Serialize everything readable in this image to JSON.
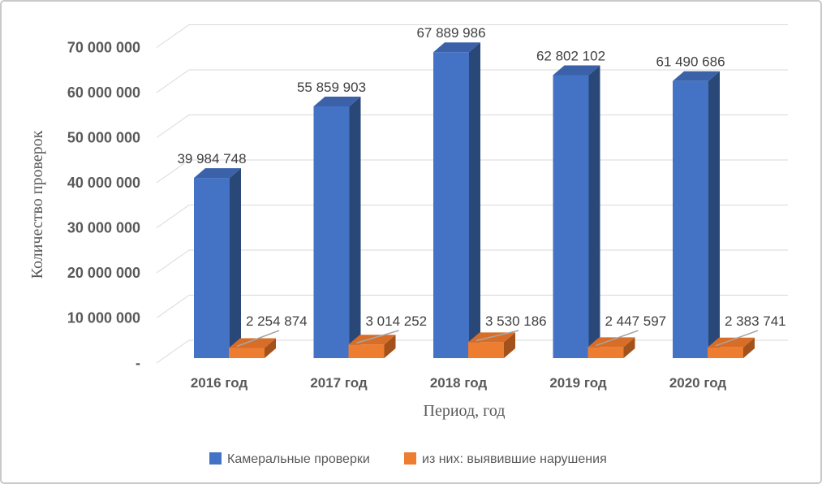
{
  "chart_data": {
    "type": "bar",
    "subtype": "3d-clustered-column",
    "title": "",
    "xlabel": "Период, год",
    "ylabel": "Количество проверок",
    "categories": [
      "2016 год",
      "2017 год",
      "2018 год",
      "2019 год",
      "2020 год"
    ],
    "series": [
      {
        "name": "Камеральные проверки",
        "color": "#4472C4",
        "color_top": "#3B62A9",
        "color_side": "#2A4877",
        "values": [
          39984748,
          55859903,
          67889986,
          62802102,
          61490686
        ],
        "labels": [
          "39 984 748",
          "55 859 903",
          "67 889 986",
          "62 802 102",
          "61 490 686"
        ]
      },
      {
        "name": "из них: выявившие нарушения",
        "color": "#ED7D31",
        "color_top": "#D86D28",
        "color_side": "#A2521A",
        "values": [
          2254874,
          3014252,
          3530186,
          2447597,
          2383741
        ],
        "labels": [
          "2 254 874",
          "3 014 252",
          "3 530 186",
          "2 447 597",
          "2 383 741"
        ]
      }
    ],
    "ylim": [
      0,
      70000000
    ],
    "ytick_interval": 10000000,
    "yticks": [
      {
        "value": 0,
        "label": "-"
      },
      {
        "value": 10000000,
        "label": "10 000 000"
      },
      {
        "value": 20000000,
        "label": "20 000 000"
      },
      {
        "value": 30000000,
        "label": "30 000 000"
      },
      {
        "value": 40000000,
        "label": "40 000 000"
      },
      {
        "value": 50000000,
        "label": "50 000 000"
      },
      {
        "value": 60000000,
        "label": "60 000 000"
      },
      {
        "value": 70000000,
        "label": "70 000 000"
      }
    ],
    "grid": true,
    "legend_position": "bottom"
  },
  "colors": {
    "gridline": "#d9d9d9",
    "leader_line": "#a6a6a6",
    "text_gray": "#595959",
    "data_label": "#404040",
    "border": "#c9c9c9"
  }
}
